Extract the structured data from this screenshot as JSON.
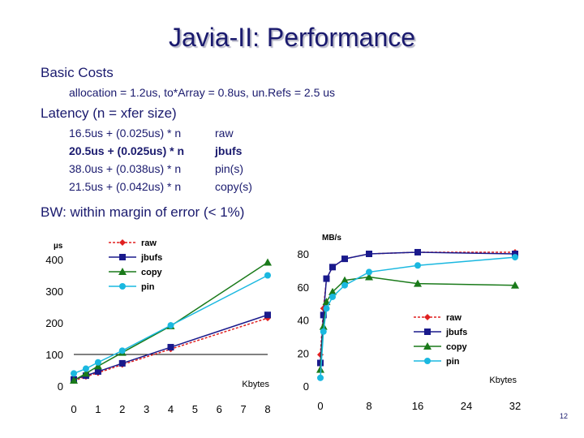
{
  "slide": {
    "title": "Javia-II: Performance",
    "basic_costs": {
      "heading": "Basic Costs",
      "detail": "allocation = 1.2us, to*Array = 0.8us, un.Refs = 2.5 us"
    },
    "latency": {
      "heading": "Latency (n = xfer size)",
      "rows": [
        {
          "formula": "16.5us + (0.025us) * n",
          "label": "raw",
          "bold": false
        },
        {
          "formula": "20.5us + (0.025us) * n",
          "label": "jbufs",
          "bold": true
        },
        {
          "formula": "38.0us + (0.038us) * n",
          "label": "pin(s)",
          "bold": false
        },
        {
          "formula": "21.5us + (0.042us) * n",
          "label": "copy(s)",
          "bold": false
        }
      ]
    },
    "bw_heading": "BW: within margin of error (< 1%)",
    "page_number": "12"
  },
  "chart_data": [
    {
      "type": "line",
      "ylabel": "µs",
      "xlabel": "Kbytes",
      "xlim": [
        0,
        8
      ],
      "ylim": [
        0,
        400
      ],
      "x_ticks": [
        0,
        1,
        2,
        3,
        4,
        5,
        6,
        7,
        8
      ],
      "y_ticks": [
        0,
        100,
        200,
        300,
        400
      ],
      "legend_position": "top-right",
      "series": [
        {
          "name": "raw",
          "color": "#e02020",
          "marker": "diamond",
          "dashed": true,
          "x": [
            0,
            0.5,
            1,
            2,
            4,
            8
          ],
          "y": [
            17,
            30,
            42,
            68,
            117,
            215
          ]
        },
        {
          "name": "jbufs",
          "color": "#1a1a8c",
          "marker": "square",
          "dashed": false,
          "x": [
            0,
            0.5,
            1,
            2,
            4,
            8
          ],
          "y": [
            21,
            33,
            46,
            72,
            123,
            225
          ]
        },
        {
          "name": "copy",
          "color": "#1a7a1a",
          "marker": "triangle",
          "dashed": false,
          "x": [
            0,
            0.5,
            1,
            2,
            4,
            8
          ],
          "y": [
            18,
            40,
            63,
            106,
            190,
            391
          ]
        },
        {
          "name": "pin",
          "color": "#1ab8e0",
          "marker": "circle",
          "dashed": false,
          "x": [
            0,
            0.5,
            1,
            2,
            4,
            8
          ],
          "y": [
            40,
            55,
            75,
            112,
            192,
            350
          ]
        }
      ]
    },
    {
      "type": "line",
      "ylabel": "MB/s",
      "xlabel": "Kbytes",
      "xlim": [
        0,
        32
      ],
      "ylim": [
        0,
        80
      ],
      "x_ticks": [
        0,
        8,
        16,
        24,
        32
      ],
      "y_ticks": [
        0,
        20,
        40,
        60,
        80
      ],
      "legend_position": "bottom-right",
      "series": [
        {
          "name": "raw",
          "color": "#e02020",
          "marker": "diamond",
          "dashed": true,
          "x": [
            0,
            0.5,
            1,
            2,
            4,
            8,
            16,
            32
          ],
          "y": [
            19,
            47,
            65,
            72,
            77,
            80,
            81,
            81
          ]
        },
        {
          "name": "jbufs",
          "color": "#1a1a8c",
          "marker": "square",
          "dashed": false,
          "x": [
            0,
            0.5,
            1,
            2,
            4,
            8,
            16,
            32
          ],
          "y": [
            14,
            43,
            65,
            72,
            77,
            80,
            81,
            80
          ]
        },
        {
          "name": "copy",
          "color": "#1a7a1a",
          "marker": "triangle",
          "dashed": false,
          "x": [
            0,
            0.5,
            1,
            2,
            4,
            8,
            16,
            32
          ],
          "y": [
            10,
            36,
            51,
            57,
            64,
            66,
            62,
            61
          ]
        },
        {
          "name": "pin",
          "color": "#1ab8e0",
          "marker": "circle",
          "dashed": false,
          "x": [
            0,
            0.5,
            1,
            2,
            4,
            8,
            16,
            32
          ],
          "y": [
            5,
            33,
            47,
            54,
            61,
            69,
            73,
            78
          ]
        }
      ]
    }
  ]
}
